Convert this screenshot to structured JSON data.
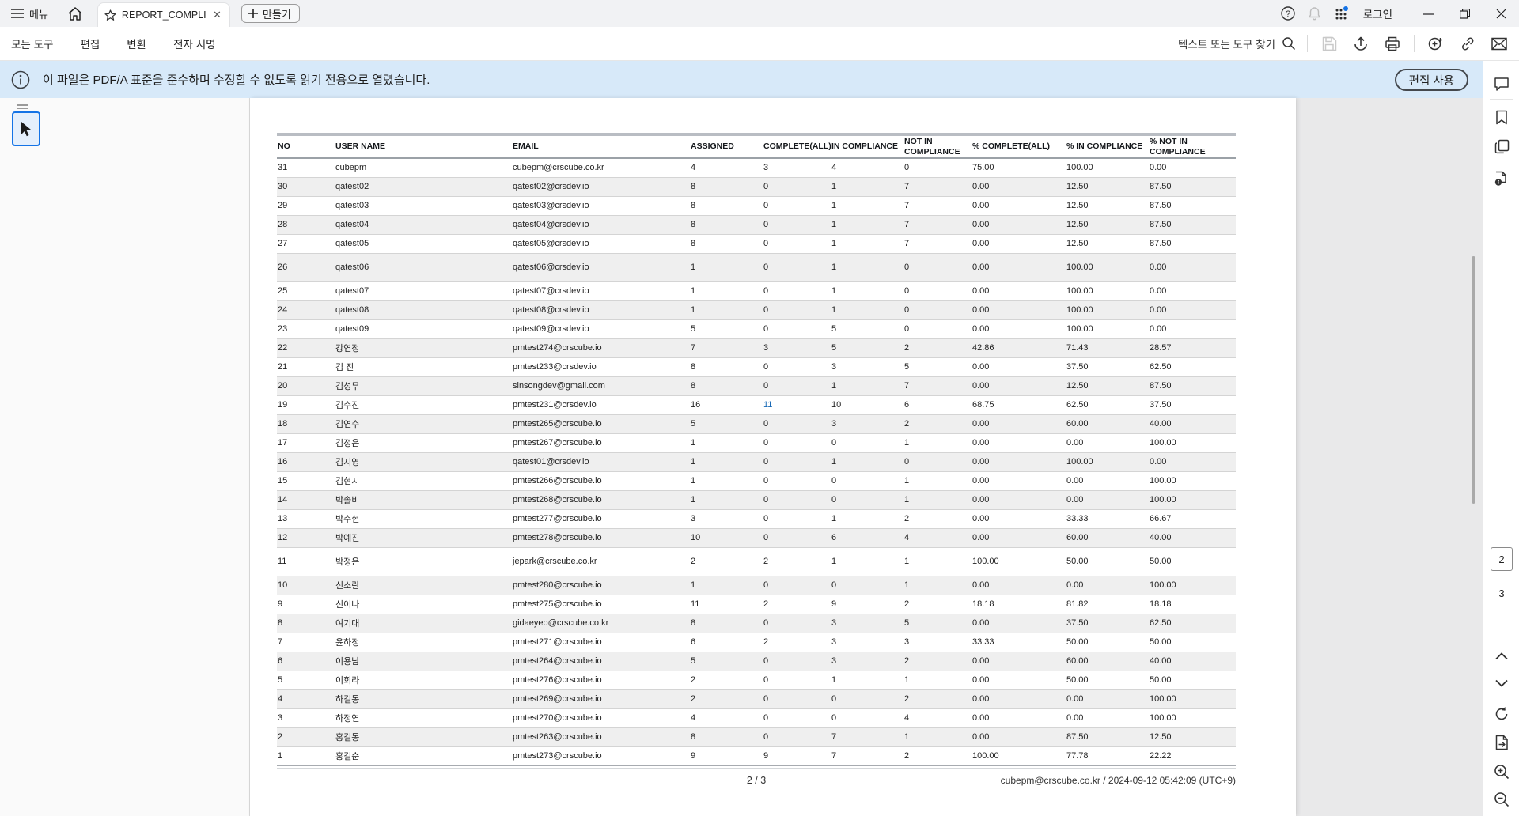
{
  "titlebar": {
    "menu_label": "메뉴",
    "tab_title": "REPORT_COMPLIAN...",
    "create_label": "만들기",
    "login_label": "로그인"
  },
  "toolbar": {
    "items": [
      "모든 도구",
      "편집",
      "변환",
      "전자 서명"
    ],
    "search_placeholder": "텍스트 또는 도구 찾기"
  },
  "banner": {
    "message": "이 파일은 PDF/A 표준을 준수하며 수정할 수 없도록 읽기 전용으로 열렸습니다.",
    "enable_edit_label": "편집 사용"
  },
  "document": {
    "columns": [
      "NO",
      "USER NAME",
      "EMAIL",
      "ASSIGNED",
      "COMPLETE(ALL)",
      "IN COMPLIANCE",
      "NOT IN COMPLIANCE",
      "% COMPLETE(ALL)",
      "% IN COMPLIANCE",
      "% NOT IN COMPLIANCE"
    ],
    "rows": [
      {
        "no": "31",
        "user": "cubepm",
        "email": "cubepm@crscube.co.kr",
        "assigned": "4",
        "complete": "3",
        "in_compliance": "4",
        "not_in_compliance": "0",
        "pct_complete": "75.00",
        "pct_in_compliance": "100.00",
        "pct_not_in_compliance": "0.00"
      },
      {
        "no": "30",
        "user": "qatest02",
        "email": "qatest02@crsdev.io",
        "assigned": "8",
        "complete": "0",
        "in_compliance": "1",
        "not_in_compliance": "7",
        "pct_complete": "0.00",
        "pct_in_compliance": "12.50",
        "pct_not_in_compliance": "87.50"
      },
      {
        "no": "29",
        "user": "qatest03",
        "email": "qatest03@crsdev.io",
        "assigned": "8",
        "complete": "0",
        "in_compliance": "1",
        "not_in_compliance": "7",
        "pct_complete": "0.00",
        "pct_in_compliance": "12.50",
        "pct_not_in_compliance": "87.50"
      },
      {
        "no": "28",
        "user": "qatest04",
        "email": "qatest04@crsdev.io",
        "assigned": "8",
        "complete": "0",
        "in_compliance": "1",
        "not_in_compliance": "7",
        "pct_complete": "0.00",
        "pct_in_compliance": "12.50",
        "pct_not_in_compliance": "87.50"
      },
      {
        "no": "27",
        "user": "qatest05",
        "email": "qatest05@crsdev.io",
        "assigned": "8",
        "complete": "0",
        "in_compliance": "1",
        "not_in_compliance": "7",
        "pct_complete": "0.00",
        "pct_in_compliance": "12.50",
        "pct_not_in_compliance": "87.50"
      },
      {
        "no": "26",
        "user": "qatest06",
        "email": "qatest06@crsdev.io",
        "assigned": "1",
        "complete": "0",
        "in_compliance": "1",
        "not_in_compliance": "0",
        "pct_complete": "0.00",
        "pct_in_compliance": "100.00",
        "pct_not_in_compliance": "0.00",
        "tall": true
      },
      {
        "no": "25",
        "user": "qatest07",
        "email": "qatest07@crsdev.io",
        "assigned": "1",
        "complete": "0",
        "in_compliance": "1",
        "not_in_compliance": "0",
        "pct_complete": "0.00",
        "pct_in_compliance": "100.00",
        "pct_not_in_compliance": "0.00"
      },
      {
        "no": "24",
        "user": "qatest08",
        "email": "qatest08@crsdev.io",
        "assigned": "1",
        "complete": "0",
        "in_compliance": "1",
        "not_in_compliance": "0",
        "pct_complete": "0.00",
        "pct_in_compliance": "100.00",
        "pct_not_in_compliance": "0.00"
      },
      {
        "no": "23",
        "user": "qatest09",
        "email": "qatest09@crsdev.io",
        "assigned": "5",
        "complete": "0",
        "in_compliance": "5",
        "not_in_compliance": "0",
        "pct_complete": "0.00",
        "pct_in_compliance": "100.00",
        "pct_not_in_compliance": "0.00"
      },
      {
        "no": "22",
        "user": "강연정",
        "email": "pmtest274@crscube.io",
        "assigned": "7",
        "complete": "3",
        "in_compliance": "5",
        "not_in_compliance": "2",
        "pct_complete": "42.86",
        "pct_in_compliance": "71.43",
        "pct_not_in_compliance": "28.57"
      },
      {
        "no": "21",
        "user": "김 진",
        "email": "pmtest233@crsdev.io",
        "assigned": "8",
        "complete": "0",
        "in_compliance": "3",
        "not_in_compliance": "5",
        "pct_complete": "0.00",
        "pct_in_compliance": "37.50",
        "pct_not_in_compliance": "62.50"
      },
      {
        "no": "20",
        "user": "김성무",
        "email": "sinsongdev@gmail.com",
        "assigned": "8",
        "complete": "0",
        "in_compliance": "1",
        "not_in_compliance": "7",
        "pct_complete": "0.00",
        "pct_in_compliance": "12.50",
        "pct_not_in_compliance": "87.50"
      },
      {
        "no": "19",
        "user": "김수진",
        "email": "pmtest231@crsdev.io",
        "assigned": "16",
        "complete": "11",
        "in_compliance": "10",
        "not_in_compliance": "6",
        "pct_complete": "68.75",
        "pct_in_compliance": "62.50",
        "pct_not_in_compliance": "37.50",
        "highlight_complete": true
      },
      {
        "no": "18",
        "user": "김연수",
        "email": "pmtest265@crscube.io",
        "assigned": "5",
        "complete": "0",
        "in_compliance": "3",
        "not_in_compliance": "2",
        "pct_complete": "0.00",
        "pct_in_compliance": "60.00",
        "pct_not_in_compliance": "40.00"
      },
      {
        "no": "17",
        "user": "김정은",
        "email": "pmtest267@crscube.io",
        "assigned": "1",
        "complete": "0",
        "in_compliance": "0",
        "not_in_compliance": "1",
        "pct_complete": "0.00",
        "pct_in_compliance": "0.00",
        "pct_not_in_compliance": "100.00"
      },
      {
        "no": "16",
        "user": "김지영",
        "email": "qatest01@crsdev.io",
        "assigned": "1",
        "complete": "0",
        "in_compliance": "1",
        "not_in_compliance": "0",
        "pct_complete": "0.00",
        "pct_in_compliance": "100.00",
        "pct_not_in_compliance": "0.00"
      },
      {
        "no": "15",
        "user": "김현지",
        "email": "pmtest266@crscube.io",
        "assigned": "1",
        "complete": "0",
        "in_compliance": "0",
        "not_in_compliance": "1",
        "pct_complete": "0.00",
        "pct_in_compliance": "0.00",
        "pct_not_in_compliance": "100.00"
      },
      {
        "no": "14",
        "user": "박솔비",
        "email": "pmtest268@crscube.io",
        "assigned": "1",
        "complete": "0",
        "in_compliance": "0",
        "not_in_compliance": "1",
        "pct_complete": "0.00",
        "pct_in_compliance": "0.00",
        "pct_not_in_compliance": "100.00"
      },
      {
        "no": "13",
        "user": "박수현",
        "email": "pmtest277@crscube.io",
        "assigned": "3",
        "complete": "0",
        "in_compliance": "1",
        "not_in_compliance": "2",
        "pct_complete": "0.00",
        "pct_in_compliance": "33.33",
        "pct_not_in_compliance": "66.67"
      },
      {
        "no": "12",
        "user": "박예진",
        "email": "pmtest278@crscube.io",
        "assigned": "10",
        "complete": "0",
        "in_compliance": "6",
        "not_in_compliance": "4",
        "pct_complete": "0.00",
        "pct_in_compliance": "60.00",
        "pct_not_in_compliance": "40.00"
      },
      {
        "no": "11",
        "user": "박정은",
        "email": "jepark@crscube.co.kr",
        "assigned": "2",
        "complete": "2",
        "in_compliance": "1",
        "not_in_compliance": "1",
        "pct_complete": "100.00",
        "pct_in_compliance": "50.00",
        "pct_not_in_compliance": "50.00",
        "tall": true
      },
      {
        "no": "10",
        "user": "신소란",
        "email": "pmtest280@crscube.io",
        "assigned": "1",
        "complete": "0",
        "in_compliance": "0",
        "not_in_compliance": "1",
        "pct_complete": "0.00",
        "pct_in_compliance": "0.00",
        "pct_not_in_compliance": "100.00"
      },
      {
        "no": "9",
        "user": "신이나",
        "email": "pmtest275@crscube.io",
        "assigned": "11",
        "complete": "2",
        "in_compliance": "9",
        "not_in_compliance": "2",
        "pct_complete": "18.18",
        "pct_in_compliance": "81.82",
        "pct_not_in_compliance": "18.18"
      },
      {
        "no": "8",
        "user": "여기대",
        "email": "gidaeyeo@crscube.co.kr",
        "assigned": "8",
        "complete": "0",
        "in_compliance": "3",
        "not_in_compliance": "5",
        "pct_complete": "0.00",
        "pct_in_compliance": "37.50",
        "pct_not_in_compliance": "62.50"
      },
      {
        "no": "7",
        "user": "윤하정",
        "email": "pmtest271@crscube.io",
        "assigned": "6",
        "complete": "2",
        "in_compliance": "3",
        "not_in_compliance": "3",
        "pct_complete": "33.33",
        "pct_in_compliance": "50.00",
        "pct_not_in_compliance": "50.00"
      },
      {
        "no": "6",
        "user": "이용남",
        "email": "pmtest264@crscube.io",
        "assigned": "5",
        "complete": "0",
        "in_compliance": "3",
        "not_in_compliance": "2",
        "pct_complete": "0.00",
        "pct_in_compliance": "60.00",
        "pct_not_in_compliance": "40.00"
      },
      {
        "no": "5",
        "user": "이희라",
        "email": "pmtest276@crscube.io",
        "assigned": "2",
        "complete": "0",
        "in_compliance": "1",
        "not_in_compliance": "1",
        "pct_complete": "0.00",
        "pct_in_compliance": "50.00",
        "pct_not_in_compliance": "50.00"
      },
      {
        "no": "4",
        "user": "하길동",
        "email": "pmtest269@crscube.io",
        "assigned": "2",
        "complete": "0",
        "in_compliance": "0",
        "not_in_compliance": "2",
        "pct_complete": "0.00",
        "pct_in_compliance": "0.00",
        "pct_not_in_compliance": "100.00"
      },
      {
        "no": "3",
        "user": "하정연",
        "email": "pmtest270@crscube.io",
        "assigned": "4",
        "complete": "0",
        "in_compliance": "0",
        "not_in_compliance": "4",
        "pct_complete": "0.00",
        "pct_in_compliance": "0.00",
        "pct_not_in_compliance": "100.00"
      },
      {
        "no": "2",
        "user": "홍길동",
        "email": "pmtest263@crscube.io",
        "assigned": "8",
        "complete": "0",
        "in_compliance": "7",
        "not_in_compliance": "1",
        "pct_complete": "0.00",
        "pct_in_compliance": "87.50",
        "pct_not_in_compliance": "12.50"
      },
      {
        "no": "1",
        "user": "홍길순",
        "email": "pmtest273@crscube.io",
        "assigned": "9",
        "complete": "9",
        "in_compliance": "7",
        "not_in_compliance": "2",
        "pct_complete": "100.00",
        "pct_in_compliance": "77.78",
        "pct_not_in_compliance": "22.22"
      }
    ],
    "page_indicator": "2 / 3",
    "footer_right": "cubepm@crscube.co.kr / 2024-09-12 05:42:09 (UTC+9)"
  },
  "right_rail": {
    "current_page": "2",
    "next_page": "3"
  },
  "icons": [
    "hamburger-menu-icon",
    "home-icon",
    "star-icon",
    "close-icon",
    "plus-icon",
    "help-icon",
    "bell-icon",
    "apps-grid-icon",
    "minimize-icon",
    "restore-icon",
    "window-close-icon",
    "search-icon",
    "save-icon",
    "share-upload-icon",
    "print-icon",
    "add-comment-icon",
    "link-icon",
    "email-icon",
    "info-icon",
    "selection-tool-icon",
    "comment-bubble-icon",
    "bookmark-icon",
    "copy-pages-icon",
    "document-info-icon",
    "chevron-up-icon",
    "chevron-down-icon",
    "refresh-icon",
    "export-document-icon",
    "zoom-in-icon",
    "zoom-out-icon"
  ],
  "colors": {
    "accent": "#1473e6",
    "banner_bg": "#d7e9f9",
    "link_blue": "#1668b5",
    "stripe": "#efefef"
  }
}
